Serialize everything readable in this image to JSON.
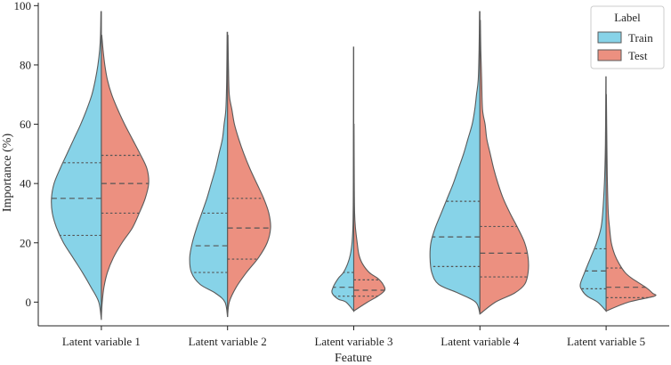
{
  "chart_data": {
    "type": "violin",
    "xlabel": "Feature",
    "ylabel": "Importance (%)",
    "ylim": [
      -8,
      101
    ],
    "yticks": [
      0,
      20,
      40,
      60,
      80,
      100
    ],
    "categories": [
      "Latent variable 1",
      "Latent variable 2",
      "Latent variable 3",
      "Latent variable 4",
      "Latent variable 5"
    ],
    "legend": {
      "title": "Label",
      "placement": "top-right",
      "entries": [
        {
          "name": "Train",
          "color": "#87d3e8"
        },
        {
          "name": "Test",
          "color": "#ec9080"
        }
      ]
    },
    "grid": false,
    "series": [
      {
        "name": "Train",
        "color": "#87d3e8",
        "side": "left",
        "violins": [
          {
            "quartiles": [
              22.5,
              35,
              47
            ],
            "profile": [
              [
                -6,
                0
              ],
              [
                0,
                3
              ],
              [
                5,
                12
              ],
              [
                10,
                22
              ],
              [
                15,
                33
              ],
              [
                20,
                44
              ],
              [
                25,
                52
              ],
              [
                30,
                57
              ],
              [
                35,
                58
              ],
              [
                40,
                55
              ],
              [
                45,
                48
              ],
              [
                50,
                40
              ],
              [
                55,
                32
              ],
              [
                60,
                24
              ],
              [
                65,
                17
              ],
              [
                70,
                11
              ],
              [
                75,
                7
              ],
              [
                80,
                4
              ],
              [
                85,
                2
              ],
              [
                90,
                1
              ],
              [
                98,
                0.5
              ]
            ]
          },
          {
            "quartiles": [
              10,
              19,
              30
            ],
            "profile": [
              [
                -5,
                0
              ],
              [
                0,
                3
              ],
              [
                3,
                14
              ],
              [
                6,
                32
              ],
              [
                10,
                42
              ],
              [
                15,
                44
              ],
              [
                20,
                41
              ],
              [
                25,
                36
              ],
              [
                30,
                30
              ],
              [
                35,
                24
              ],
              [
                40,
                19
              ],
              [
                45,
                14
              ],
              [
                50,
                10
              ],
              [
                55,
                6
              ],
              [
                60,
                4
              ],
              [
                65,
                2
              ],
              [
                75,
                1
              ],
              [
                91,
                0.5
              ]
            ]
          },
          {
            "quartiles": [
              2,
              5,
              10
            ],
            "profile": [
              [
                -3,
                0
              ],
              [
                0,
                9
              ],
              [
                1,
                18
              ],
              [
                3,
                25
              ],
              [
                5,
                24
              ],
              [
                8,
                18
              ],
              [
                10,
                12
              ],
              [
                13,
                7
              ],
              [
                16,
                4
              ],
              [
                20,
                2
              ],
              [
                25,
                1
              ],
              [
                30,
                0.7
              ],
              [
                40,
                0.5
              ],
              [
                86,
                0.3
              ]
            ]
          },
          {
            "quartiles": [
              12,
              22,
              34
            ],
            "profile": [
              [
                -4,
                0
              ],
              [
                0,
                5
              ],
              [
                3,
                25
              ],
              [
                6,
                48
              ],
              [
                10,
                56
              ],
              [
                15,
                58
              ],
              [
                20,
                57
              ],
              [
                25,
                52
              ],
              [
                30,
                45
              ],
              [
                35,
                38
              ],
              [
                40,
                31
              ],
              [
                45,
                25
              ],
              [
                50,
                19
              ],
              [
                55,
                14
              ],
              [
                60,
                9
              ],
              [
                65,
                6
              ],
              [
                70,
                4
              ],
              [
                75,
                2
              ],
              [
                85,
                1
              ],
              [
                98,
                0.5
              ]
            ]
          },
          {
            "quartiles": [
              4.5,
              10.5,
              18
            ],
            "profile": [
              [
                -3,
                0
              ],
              [
                0,
                10
              ],
              [
                2,
                22
              ],
              [
                4,
                28
              ],
              [
                6,
                30
              ],
              [
                10,
                25
              ],
              [
                15,
                18
              ],
              [
                20,
                11
              ],
              [
                25,
                6
              ],
              [
                30,
                4
              ],
              [
                40,
                2
              ],
              [
                50,
                1
              ],
              [
                60,
                0.6
              ],
              [
                76,
                0.3
              ]
            ]
          }
        ]
      },
      {
        "name": "Test",
        "color": "#ec9080",
        "side": "right",
        "violins": [
          {
            "quartiles": [
              30,
              40,
              49.5
            ],
            "profile": [
              [
                -5,
                0
              ],
              [
                0,
                1
              ],
              [
                5,
                3
              ],
              [
                10,
                7
              ],
              [
                15,
                14
              ],
              [
                20,
                24
              ],
              [
                25,
                36
              ],
              [
                30,
                44
              ],
              [
                35,
                51
              ],
              [
                40,
                55
              ],
              [
                45,
                53
              ],
              [
                50,
                45
              ],
              [
                55,
                36
              ],
              [
                60,
                27
              ],
              [
                65,
                19
              ],
              [
                70,
                12
              ],
              [
                75,
                7
              ],
              [
                80,
                4
              ],
              [
                85,
                2
              ],
              [
                90,
                0.5
              ]
            ]
          },
          {
            "quartiles": [
              14.5,
              25,
              35
            ],
            "profile": [
              [
                -5,
                0
              ],
              [
                0,
                2
              ],
              [
                5,
                10
              ],
              [
                10,
                22
              ],
              [
                15,
                36
              ],
              [
                20,
                46
              ],
              [
                25,
                50
              ],
              [
                30,
                48
              ],
              [
                35,
                42
              ],
              [
                40,
                34
              ],
              [
                45,
                26
              ],
              [
                50,
                19
              ],
              [
                55,
                13
              ],
              [
                60,
                8
              ],
              [
                65,
                5
              ],
              [
                70,
                2
              ],
              [
                80,
                1
              ],
              [
                90,
                0.5
              ]
            ]
          },
          {
            "quartiles": [
              2,
              4,
              7.5
            ],
            "profile": [
              [
                -3,
                0
              ],
              [
                0,
                16
              ],
              [
                2,
                28
              ],
              [
                4,
                36
              ],
              [
                6,
                34
              ],
              [
                8,
                28
              ],
              [
                10,
                18
              ],
              [
                13,
                10
              ],
              [
                16,
                6
              ],
              [
                20,
                4
              ],
              [
                25,
                2
              ],
              [
                30,
                1
              ],
              [
                40,
                0.6
              ],
              [
                60,
                0.3
              ]
            ]
          },
          {
            "quartiles": [
              8.5,
              16.5,
              25.5
            ],
            "profile": [
              [
                -4,
                0
              ],
              [
                0,
                18
              ],
              [
                3,
                40
              ],
              [
                6,
                52
              ],
              [
                10,
                56
              ],
              [
                15,
                56
              ],
              [
                20,
                52
              ],
              [
                25,
                44
              ],
              [
                30,
                35
              ],
              [
                35,
                27
              ],
              [
                40,
                21
              ],
              [
                45,
                16
              ],
              [
                50,
                12
              ],
              [
                55,
                8
              ],
              [
                60,
                6
              ],
              [
                65,
                3
              ],
              [
                75,
                2
              ],
              [
                85,
                1
              ],
              [
                95,
                0.5
              ]
            ]
          },
          {
            "quartiles": [
              1.5,
              5,
              11.5
            ],
            "profile": [
              [
                -3,
                0
              ],
              [
                0,
                26
              ],
              [
                2,
                56
              ],
              [
                3,
                54
              ],
              [
                5,
                46
              ],
              [
                8,
                30
              ],
              [
                10,
                22
              ],
              [
                13,
                15
              ],
              [
                16,
                10
              ],
              [
                20,
                6
              ],
              [
                25,
                4
              ],
              [
                30,
                2.5
              ],
              [
                40,
                1.5
              ],
              [
                50,
                1
              ],
              [
                70,
                0.3
              ]
            ]
          }
        ]
      }
    ]
  }
}
